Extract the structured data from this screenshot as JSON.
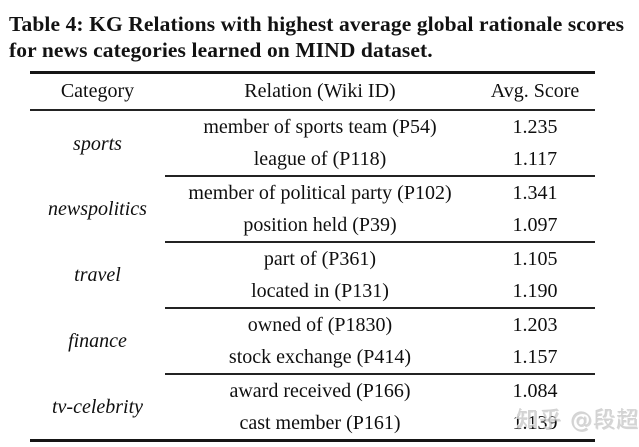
{
  "title": "Table 4: KG Relations with highest average global rationale scores for news categories learned on MIND dataset.",
  "table": {
    "headers": [
      "Category",
      "Relation (Wiki ID)",
      "Avg. Score"
    ],
    "groups": [
      {
        "category": "sports",
        "rows": [
          {
            "relation": "member of sports team (P54)",
            "score": "1.235"
          },
          {
            "relation": "league of (P118)",
            "score": "1.117"
          }
        ]
      },
      {
        "category": "newspolitics",
        "rows": [
          {
            "relation": "member of political party (P102)",
            "score": "1.341"
          },
          {
            "relation": "position held (P39)",
            "score": "1.097"
          }
        ]
      },
      {
        "category": "travel",
        "rows": [
          {
            "relation": "part of (P361)",
            "score": "1.105"
          },
          {
            "relation": "located in (P131)",
            "score": "1.190"
          }
        ]
      },
      {
        "category": "finance",
        "rows": [
          {
            "relation": "owned of (P1830)",
            "score": "1.203"
          },
          {
            "relation": "stock exchange (P414)",
            "score": "1.157"
          }
        ]
      },
      {
        "category": "tv-celebrity",
        "rows": [
          {
            "relation": "award received (P166)",
            "score": "1.084"
          },
          {
            "relation": "cast member (P161)",
            "score": "1.139"
          }
        ]
      }
    ]
  },
  "watermark": "知乎 @段超",
  "colors": {
    "background": "#ffffff",
    "text": "#0f0f0f",
    "rule": "#161616",
    "watermark": "#cccccc"
  }
}
